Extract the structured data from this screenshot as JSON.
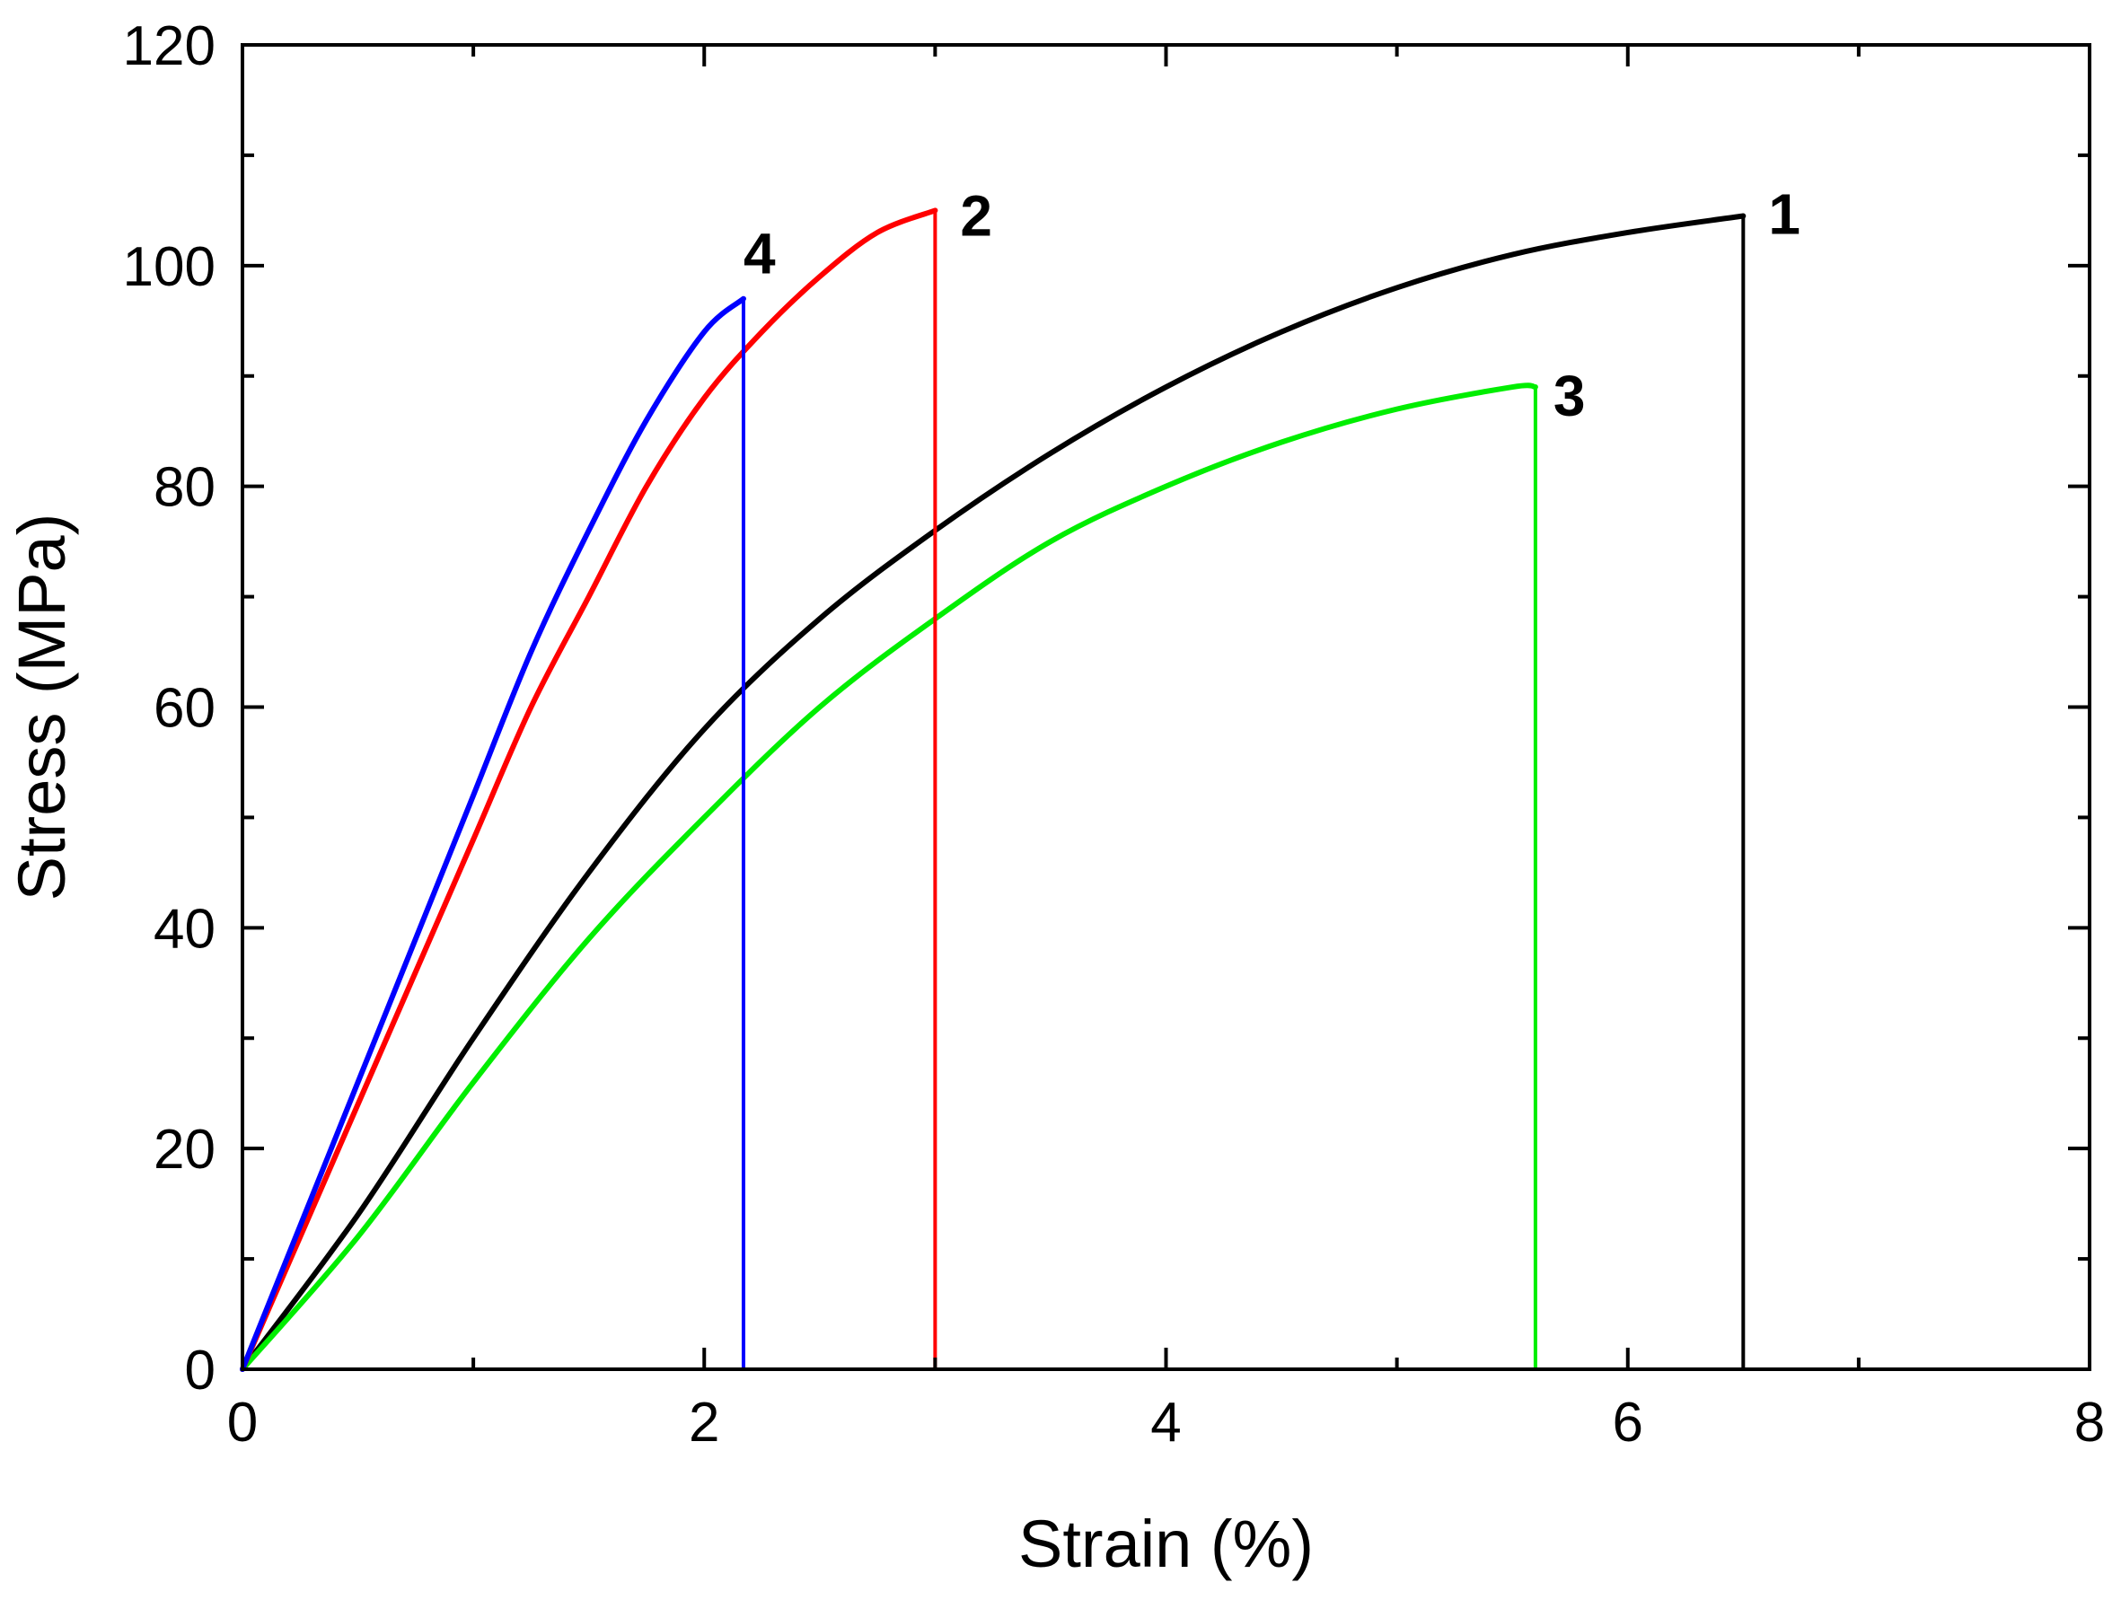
{
  "chart_data": {
    "type": "line",
    "title": "",
    "xlabel": "Strain (%)",
    "ylabel": "Stress (MPa)",
    "xlim": [
      0,
      8
    ],
    "ylim": [
      0,
      120
    ],
    "xticks": [
      0,
      2,
      4,
      6,
      8
    ],
    "yticks": [
      0,
      20,
      40,
      60,
      80,
      100,
      120
    ],
    "x_minor_step": 1,
    "y_minor_step": 10,
    "grid": false,
    "legend": "none",
    "series": [
      {
        "name": "1",
        "color": "#000000",
        "points": [
          [
            0,
            0
          ],
          [
            0.5,
            14
          ],
          [
            1.0,
            30
          ],
          [
            1.5,
            45
          ],
          [
            2.0,
            58
          ],
          [
            2.5,
            68
          ],
          [
            3.0,
            76
          ],
          [
            3.5,
            83
          ],
          [
            4.0,
            89
          ],
          [
            4.5,
            94
          ],
          [
            5.0,
            98
          ],
          [
            5.5,
            101
          ],
          [
            6.0,
            103
          ],
          [
            6.5,
            104.5
          ]
        ],
        "end_drop_x": 6.5,
        "label_at": [
          6.5,
          104.5
        ]
      },
      {
        "name": "2",
        "color": "#ff0000",
        "points": [
          [
            0,
            0
          ],
          [
            0.25,
            12
          ],
          [
            0.5,
            24
          ],
          [
            0.75,
            36
          ],
          [
            1.0,
            48
          ],
          [
            1.25,
            60
          ],
          [
            1.5,
            70
          ],
          [
            1.75,
            80
          ],
          [
            2.0,
            88
          ],
          [
            2.25,
            94
          ],
          [
            2.5,
            99
          ],
          [
            2.75,
            103
          ],
          [
            3.0,
            105
          ]
        ],
        "end_drop_x": 3.0,
        "label_at": [
          3.0,
          105
        ]
      },
      {
        "name": "3",
        "color": "#00ee00",
        "points": [
          [
            0,
            0
          ],
          [
            0.5,
            12
          ],
          [
            1.0,
            26
          ],
          [
            1.5,
            39
          ],
          [
            2.0,
            50
          ],
          [
            2.5,
            60
          ],
          [
            3.0,
            68
          ],
          [
            3.5,
            75
          ],
          [
            4.0,
            80
          ],
          [
            4.5,
            84
          ],
          [
            5.0,
            87
          ],
          [
            5.5,
            89
          ],
          [
            5.6,
            89
          ]
        ],
        "end_drop_x": 5.6,
        "label_at": [
          5.6,
          89
        ]
      },
      {
        "name": "4",
        "color": "#0000ff",
        "points": [
          [
            0,
            0
          ],
          [
            0.25,
            13
          ],
          [
            0.5,
            26
          ],
          [
            0.75,
            39
          ],
          [
            1.0,
            52
          ],
          [
            1.25,
            65
          ],
          [
            1.5,
            76
          ],
          [
            1.75,
            86
          ],
          [
            2.0,
            94
          ],
          [
            2.17,
            97
          ]
        ],
        "end_drop_x": 2.17,
        "label_at": [
          2.17,
          97
        ]
      }
    ]
  }
}
